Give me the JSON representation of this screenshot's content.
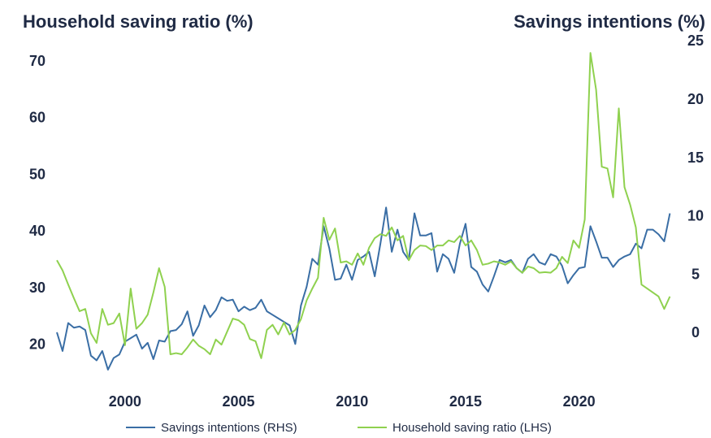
{
  "chart_data": {
    "type": "line",
    "title": "Household saving ratio (%)",
    "y2_title": "Savings intentions (%)",
    "x": [
      1997,
      1997.25,
      1997.5,
      1997.75,
      1998,
      1998.25,
      1998.5,
      1998.75,
      1999,
      1999.25,
      1999.5,
      1999.75,
      2000,
      2000.25,
      2000.5,
      2000.75,
      2001,
      2001.25,
      2001.5,
      2001.75,
      2002,
      2002.25,
      2002.5,
      2002.75,
      2003,
      2003.25,
      2003.5,
      2003.75,
      2004,
      2004.25,
      2004.5,
      2004.75,
      2005,
      2005.25,
      2005.5,
      2005.75,
      2006,
      2006.25,
      2006.5,
      2006.75,
      2007,
      2007.25,
      2007.5,
      2007.75,
      2008,
      2008.25,
      2008.5,
      2008.75,
      2009,
      2009.25,
      2009.5,
      2009.75,
      2010,
      2010.25,
      2010.5,
      2010.75,
      2011,
      2011.25,
      2011.5,
      2011.75,
      2012,
      2012.25,
      2012.5,
      2012.75,
      2013,
      2013.25,
      2013.5,
      2013.75,
      2014,
      2014.25,
      2014.5,
      2014.75,
      2015,
      2015.25,
      2015.5,
      2015.75,
      2016,
      2016.25,
      2016.5,
      2016.75,
      2017,
      2017.25,
      2017.5,
      2017.75,
      2018,
      2018.25,
      2018.5,
      2018.75,
      2019,
      2019.25,
      2019.5,
      2019.75,
      2020,
      2020.25,
      2020.5,
      2020.75,
      2021,
      2021.25,
      2021.5,
      2021.75,
      2022,
      2022.25,
      2022.5,
      2022.75,
      2023,
      2023.25,
      2023.5,
      2023.75,
      2024
    ],
    "series": [
      {
        "name": "Savings intentions (RHS)",
        "color": "#3a6ea5",
        "axis": "y2",
        "values": [
          0.1,
          -1.5,
          0.9,
          0.5,
          0.6,
          0.3,
          -1.9,
          -2.3,
          -1.5,
          -3.1,
          -2.1,
          -1.8,
          -0.7,
          -0.4,
          -0.1,
          -1.3,
          -0.8,
          -2.2,
          -0.6,
          -0.7,
          0.2,
          0.3,
          0.8,
          1.9,
          -0.2,
          0.7,
          2.4,
          1.4,
          2.0,
          3.1,
          2.8,
          2.9,
          1.9,
          2.3,
          2.0,
          2.2,
          2.9,
          1.9,
          1.6,
          1.3,
          1.0,
          0.7,
          -0.9,
          2.4,
          4.0,
          6.4,
          5.9,
          9.2,
          7.3,
          4.6,
          4.7,
          5.9,
          4.6,
          6.3,
          6.6,
          7.0,
          4.9,
          7.7,
          10.8,
          7.0,
          8.9,
          7.0,
          6.3,
          10.3,
          8.4,
          8.4,
          8.6,
          5.3,
          6.8,
          6.4,
          5.2,
          7.7,
          9.4,
          5.7,
          5.3,
          4.2,
          3.6,
          4.9,
          6.3,
          6.1,
          6.3,
          5.6,
          5.2,
          6.4,
          6.8,
          6.1,
          5.9,
          6.8,
          6.6,
          5.8,
          4.3,
          5.0,
          5.6,
          5.7,
          9.2,
          7.9,
          6.5,
          6.5,
          5.7,
          6.3,
          6.6,
          6.8,
          7.7,
          7.3,
          8.9,
          8.9,
          8.5,
          7.9,
          10.3
        ]
      },
      {
        "name": "Household saving ratio (LHS)",
        "color": "#8fd14f",
        "axis": "y",
        "values": [
          35.0,
          33.2,
          30.7,
          28.3,
          26.0,
          26.4,
          22.1,
          20.4,
          26.4,
          23.6,
          23.9,
          25.6,
          20.0,
          30.0,
          22.9,
          23.9,
          25.4,
          29.3,
          33.6,
          30.3,
          18.4,
          18.6,
          18.4,
          19.6,
          21.0,
          19.9,
          19.3,
          18.4,
          21.0,
          20.1,
          22.4,
          24.7,
          24.4,
          23.6,
          21.1,
          20.7,
          17.7,
          22.7,
          23.6,
          21.9,
          24.0,
          21.9,
          22.7,
          24.6,
          27.9,
          30.0,
          31.9,
          42.5,
          38.6,
          40.6,
          34.6,
          34.8,
          34.2,
          36.2,
          34.2,
          37.2,
          38.9,
          39.6,
          39.3,
          40.8,
          38.5,
          39.3,
          35.0,
          36.8,
          37.6,
          37.5,
          36.8,
          37.6,
          37.6,
          38.5,
          38.2,
          39.3,
          37.6,
          38.5,
          36.8,
          34.2,
          34.4,
          34.8,
          34.6,
          34.2,
          34.8,
          33.6,
          32.8,
          33.9,
          33.6,
          32.8,
          32.9,
          32.8,
          33.6,
          35.6,
          34.5,
          38.5,
          37.2,
          42.2,
          71.6,
          65.1,
          51.5,
          51.2,
          46.1,
          61.8,
          47.9,
          44.8,
          40.8,
          30.7,
          30.0,
          29.3,
          28.6,
          26.4,
          28.6
        ]
      }
    ],
    "xlim": [
      1997,
      2024.2
    ],
    "xticks": [
      2000,
      2005,
      2010,
      2015,
      2020
    ],
    "ylim": [
      12.8,
      75.2
    ],
    "yticks": [
      20,
      30,
      40,
      50,
      60,
      70
    ],
    "y2lim": [
      -4.5,
      25.8
    ],
    "y2ticks": [
      0,
      5,
      10,
      15,
      20,
      25
    ],
    "grid": false,
    "legend": "bottom"
  }
}
